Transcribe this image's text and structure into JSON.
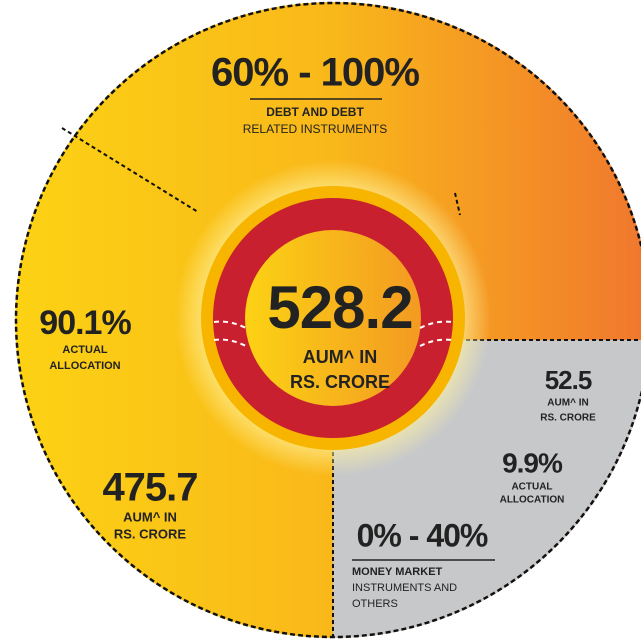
{
  "center": {
    "value": "528.2",
    "lines": [
      "AUM^ IN",
      "RS. CRORE"
    ]
  },
  "segments": [
    {
      "range": "60% - 100%",
      "name": [
        "DEBT AND DEBT",
        "RELATED INSTRUMENTS"
      ],
      "actual": "90.1%",
      "actual_label": [
        "ACTUAL",
        "ALLOCATION"
      ],
      "aum": "475.7",
      "aum_label": [
        "AUM^ IN",
        "RS. CRORE"
      ]
    },
    {
      "range": "0% - 40%",
      "name": [
        "MONEY MARKET",
        "INSTRUMENTS AND",
        "OTHERS"
      ],
      "actual": "9.9%",
      "actual_label": [
        "ACTUAL",
        "ALLOCATION"
      ],
      "aum": "52.5",
      "aum_label": [
        "AUM^ IN",
        "RS. CRORE"
      ]
    }
  ]
}
